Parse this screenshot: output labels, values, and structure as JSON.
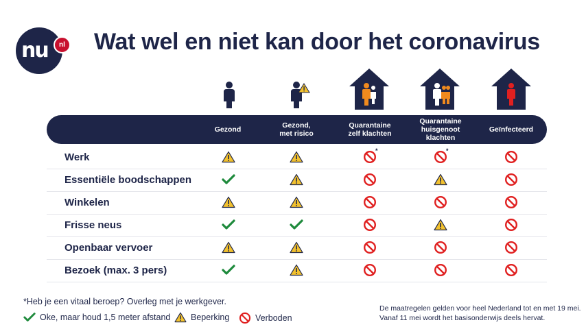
{
  "logo": {
    "main": "nu",
    "badge": "nl"
  },
  "title": "Wat wel en niet kan door het coronavirus",
  "columns": [
    {
      "label_l1": "",
      "label_l2": "Gezond",
      "label_l3": ""
    },
    {
      "label_l1": "Gezond,",
      "label_l2": "met risico",
      "label_l3": ""
    },
    {
      "label_l1": "Quarantaine",
      "label_l2": "zelf klachten",
      "label_l3": ""
    },
    {
      "label_l1": "Quarantaine",
      "label_l2": "huisgenoot",
      "label_l3": "klachten"
    },
    {
      "label_l1": "",
      "label_l2": "Geïnfecteerd",
      "label_l3": ""
    }
  ],
  "rows": [
    {
      "label": "Werk",
      "cells": [
        "warn",
        "warn",
        "no",
        "no",
        "no"
      ]
    },
    {
      "label": "Essentiële boodschappen",
      "cells": [
        "ok",
        "warn",
        "no",
        "warn",
        "no"
      ]
    },
    {
      "label": "Winkelen",
      "cells": [
        "warn",
        "warn",
        "no",
        "no",
        "no"
      ]
    },
    {
      "label": "Frisse neus",
      "cells": [
        "ok",
        "ok",
        "no",
        "warn",
        "no"
      ]
    },
    {
      "label": "Openbaar vervoer",
      "cells": [
        "warn",
        "warn",
        "no",
        "no",
        "no"
      ]
    },
    {
      "label": "Bezoek (max. 3 pers)",
      "cells": [
        "ok",
        "warn",
        "no",
        "no",
        "no"
      ]
    }
  ],
  "asterisk": "*",
  "footnote": "*Heb je een vitaal beroep? Overleg met je werkgever.",
  "legend": {
    "ok": "Oke, maar houd 1,5 meter afstand",
    "warn": "Beperking",
    "no": "Verboden"
  },
  "note_1": "De maatregelen gelden voor heel Nederland tot en met 19 mei.",
  "note_2": "Vanaf 11 mei wordt het basisonderwijs deels hervat.",
  "colors": {
    "navy": "#1e2548",
    "green": "#1e8a3c",
    "red": "#e02020",
    "yellow": "#f2c12e",
    "orange": "#f08a1e"
  }
}
